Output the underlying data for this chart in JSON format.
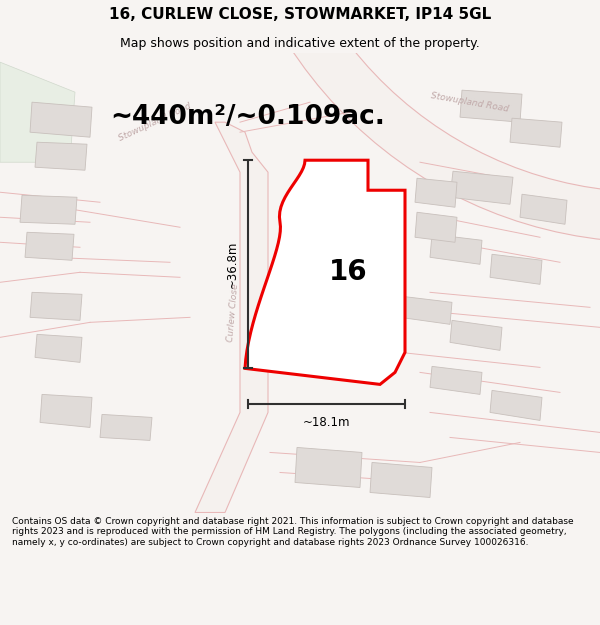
{
  "title": "16, CURLEW CLOSE, STOWMARKET, IP14 5GL",
  "subtitle": "Map shows position and indicative extent of the property.",
  "area_text": "~440m²/~0.109ac.",
  "dim_vertical": "~36.8m",
  "dim_horizontal": "~18.1m",
  "property_number": "16",
  "footer": "Contains OS data © Crown copyright and database right 2021. This information is subject to Crown copyright and database rights 2023 and is reproduced with the permission of HM Land Registry. The polygons (including the associated geometry, namely x, y co-ordinates) are subject to Crown copyright and database rights 2023 Ordnance Survey 100026316.",
  "bg_color": "#f7f4f2",
  "map_bg": "#f5f1ee",
  "property_fill": "#ffffff",
  "property_stroke": "#ee0000",
  "road_outline": "#e8b8b8",
  "road_fill": "#f5f1ee",
  "building_fill": "#e0dbd8",
  "building_edge": "#c8c0bc",
  "road_label_color": "#c0a8a8",
  "title_fontsize": 11,
  "subtitle_fontsize": 9,
  "area_fontsize": 19,
  "number_fontsize": 20,
  "footer_fontsize": 6.5,
  "dim_color": "#303030",
  "dim_lw": 1.5,
  "property_lw": 2.2
}
